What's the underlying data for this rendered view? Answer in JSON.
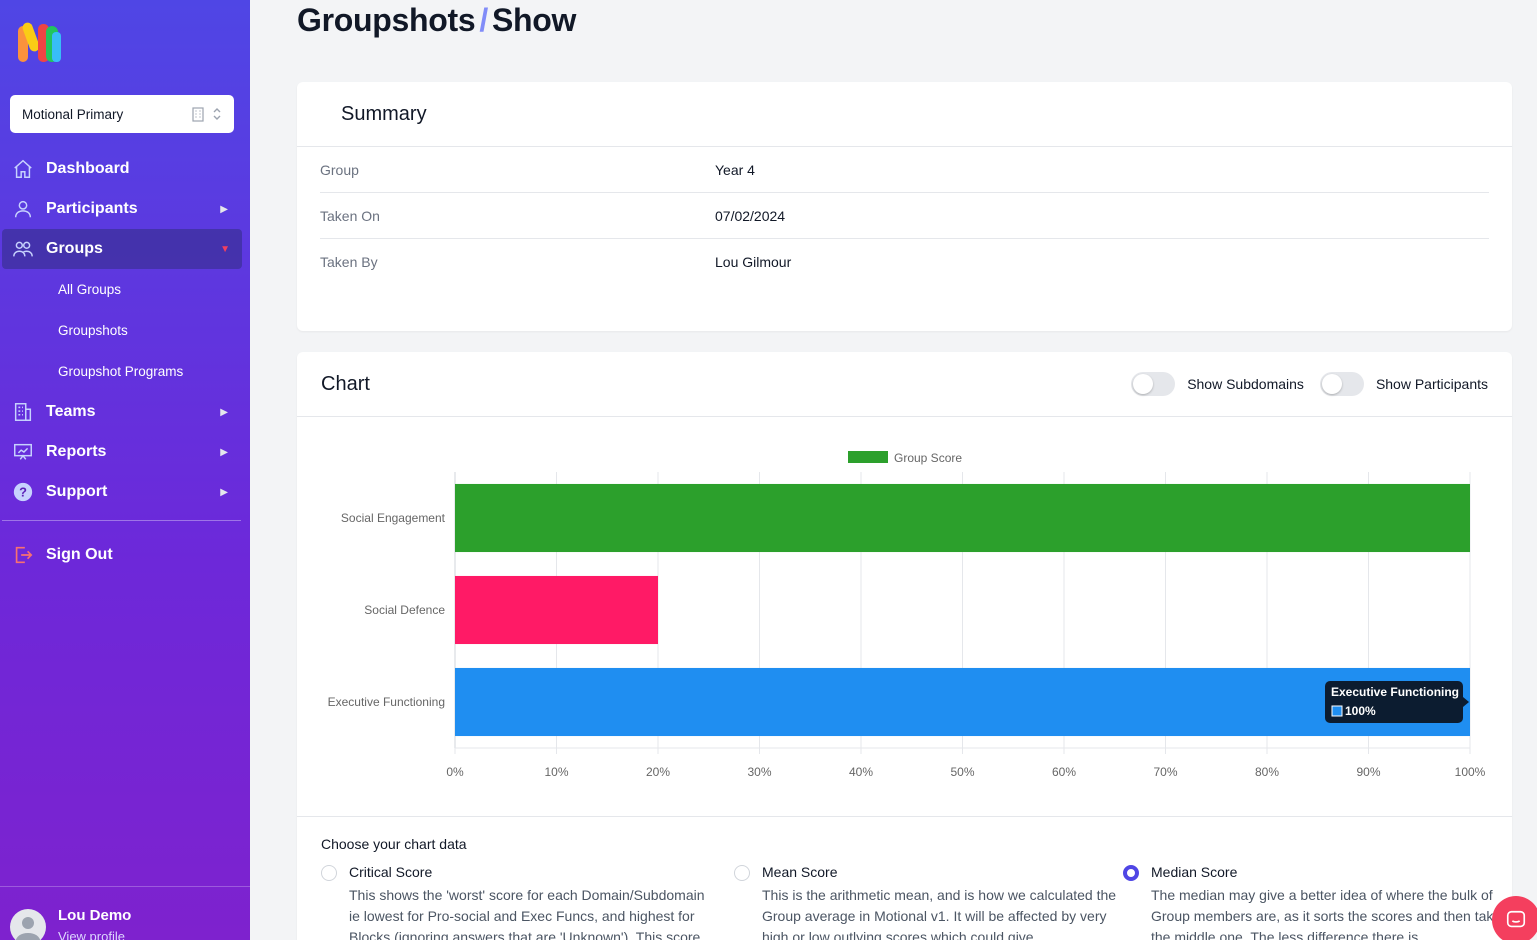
{
  "sidebar": {
    "org_selector": {
      "value": "Motional Primary"
    },
    "nav": [
      {
        "label": "Dashboard",
        "icon": "home-icon"
      },
      {
        "label": "Participants",
        "icon": "user-icon"
      },
      {
        "label": "Groups",
        "icon": "users-icon",
        "active": true
      },
      {
        "label": "Teams",
        "icon": "building-icon"
      },
      {
        "label": "Reports",
        "icon": "presentation-chart-icon"
      },
      {
        "label": "Support",
        "icon": "question-circle-icon"
      }
    ],
    "groups_sub": [
      "All Groups",
      "Groupshots",
      "Groupshot Programs"
    ],
    "sign_out": "Sign Out",
    "user": {
      "name": "Lou Demo",
      "link": "View profile"
    }
  },
  "page": {
    "title_part1": "Groupshots",
    "title_sep": "/",
    "title_part2": "Show"
  },
  "summary": {
    "heading": "Summary",
    "rows": [
      {
        "key": "Group",
        "value": "Year 4"
      },
      {
        "key": "Taken On",
        "value": "07/02/2024"
      },
      {
        "key": "Taken By",
        "value": "Lou Gilmour"
      }
    ]
  },
  "chart_card": {
    "heading": "Chart",
    "toggles": [
      {
        "label": "Show Subdomains",
        "on": false
      },
      {
        "label": "Show Participants",
        "on": false
      }
    ],
    "choose_title": "Choose your chart data",
    "options": [
      {
        "label": "Critical Score",
        "checked": false,
        "desc": "This shows the 'worst' score for each Domain/Subdomain ie lowest for Pro-social and Exec Funcs, and highest for Blocks (ignoring answers that are 'Unknown'). This score"
      },
      {
        "label": "Mean Score",
        "checked": false,
        "desc": "This is the arithmetic mean, and is how we calculated the Group average in Motional v1. It will be affected by very high or low outlying scores which could give"
      },
      {
        "label": "Median Score",
        "checked": true,
        "desc": "The median may give a better idea of where the bulk of Group members are, as it sorts the scores and then takes the middle one. The less difference there is"
      }
    ]
  },
  "chart_data": {
    "type": "bar",
    "orientation": "horizontal",
    "legend": [
      "Group Score"
    ],
    "legend_placement": "top",
    "categories": [
      "Social Engagement",
      "Social Defence",
      "Executive Functioning"
    ],
    "series": [
      {
        "name": "Group Score",
        "values": [
          100,
          20,
          100
        ]
      }
    ],
    "colors": [
      "#2ca02c",
      "#ff1a66",
      "#1f8ef1"
    ],
    "xlim": [
      0,
      100
    ],
    "x_ticks": [
      "0%",
      "10%",
      "20%",
      "30%",
      "40%",
      "50%",
      "60%",
      "70%",
      "80%",
      "90%",
      "100%"
    ],
    "grid": true,
    "tooltip": {
      "title": "Executive Functioning",
      "value": "100%"
    }
  }
}
